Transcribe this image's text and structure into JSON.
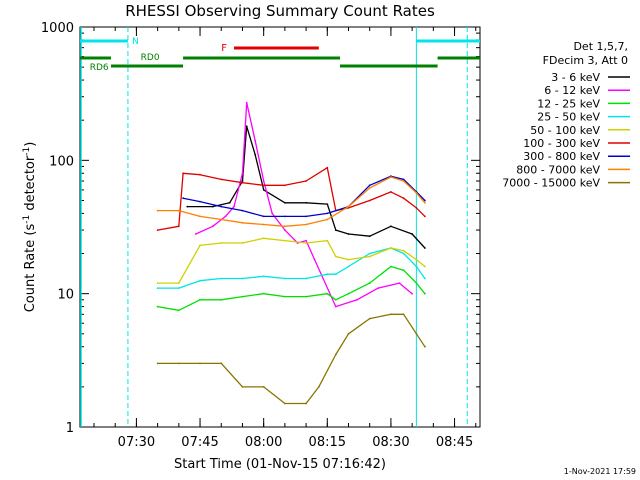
{
  "chart_data": {
    "type": "line",
    "title": "RHESSI Observing Summary Count Rates",
    "xlabel": "Start Time (01-Nov-15 07:16:42)",
    "ylabel_main": "Count Rate (s",
    "ylabel_sup1": "-1",
    "ylabel_mid": " detector",
    "ylabel_sup2": "-1",
    "ylabel_end": ")",
    "y_scale": "log",
    "ylim": [
      1,
      1000
    ],
    "xlim": [
      "07:16:42",
      "08:51:00"
    ],
    "x_ticks": [
      "07:30",
      "07:45",
      "08:00",
      "08:15",
      "08:30",
      "08:45"
    ],
    "y_ticks": [
      "1",
      "10",
      "100",
      "1000"
    ],
    "legend_header": [
      "Det 1,5,7,",
      "FDecim 3, Att 0"
    ],
    "footer_date": "1-Nov-2021 17:59",
    "flags": {
      "N": {
        "label": "N",
        "color": "#00e5e5"
      },
      "F": {
        "label": "F",
        "color": "#e00000"
      },
      "RD0": {
        "label": "RD0",
        "color": "#008000"
      },
      "RD6": {
        "label": "RD6",
        "color": "#008000"
      }
    },
    "series": [
      {
        "name": "3 - 6 keV",
        "color": "#000000",
        "x": [
          "07:35",
          "07:42",
          "07:48",
          "07:52",
          "07:55",
          "07:56",
          "07:58",
          "08:00",
          "08:05",
          "08:10",
          "08:15",
          "08:17",
          "08:20",
          "08:25",
          "08:30",
          "08:35",
          "08:38"
        ],
        "y": [
          null,
          45,
          45,
          48,
          70,
          180,
          110,
          60,
          48,
          48,
          47,
          30,
          28,
          27,
          32,
          28,
          22
        ]
      },
      {
        "name": "6 - 12 keV",
        "color": "#ff00ff",
        "x": [
          "07:44",
          "07:48",
          "07:51",
          "07:53",
          "07:55",
          "07:56",
          "07:58",
          "08:00",
          "08:02",
          "08:05",
          "08:08",
          "08:10",
          "08:12",
          "08:17",
          "08:22",
          "08:27",
          "08:32",
          "08:35"
        ],
        "y": [
          28,
          32,
          38,
          45,
          80,
          270,
          140,
          70,
          40,
          30,
          24,
          25,
          18,
          8,
          9,
          11,
          12,
          10
        ]
      },
      {
        "name": "12 - 25 keV",
        "color": "#00e000",
        "x": [
          "07:35",
          "07:40",
          "07:45",
          "07:50",
          "07:55",
          "08:00",
          "08:05",
          "08:10",
          "08:15",
          "08:17",
          "08:20",
          "08:25",
          "08:30",
          "08:33",
          "08:36",
          "08:38"
        ],
        "y": [
          8,
          7.5,
          9,
          9,
          9.5,
          10,
          9.5,
          9.5,
          10,
          9,
          10,
          12,
          16,
          15,
          12,
          10
        ]
      },
      {
        "name": "25 - 50 keV",
        "color": "#00e5e5",
        "x": [
          "07:35",
          "07:40",
          "07:45",
          "07:50",
          "07:55",
          "08:00",
          "08:05",
          "08:10",
          "08:15",
          "08:17",
          "08:20",
          "08:25",
          "08:30",
          "08:33",
          "08:36",
          "08:38"
        ],
        "y": [
          11,
          11,
          12.5,
          13,
          13,
          13.5,
          13,
          13,
          14,
          14,
          16,
          20,
          22,
          20,
          16,
          13
        ]
      },
      {
        "name": "50 - 100 keV",
        "color": "#d0d000",
        "x": [
          "07:35",
          "07:40",
          "07:45",
          "07:50",
          "07:55",
          "08:00",
          "08:05",
          "08:10",
          "08:15",
          "08:17",
          "08:20",
          "08:25",
          "08:30",
          "08:33",
          "08:36",
          "08:38"
        ],
        "y": [
          12,
          12,
          23,
          24,
          24,
          26,
          25,
          24,
          25,
          19,
          18,
          19,
          22,
          21,
          18,
          16
        ]
      },
      {
        "name": "100 - 300 keV",
        "color": "#e00000",
        "x": [
          "07:35",
          "07:40",
          "07:41",
          "07:45",
          "07:50",
          "07:55",
          "08:00",
          "08:05",
          "08:10",
          "08:15",
          "08:17",
          "08:20",
          "08:25",
          "08:30",
          "08:33",
          "08:36",
          "08:38"
        ],
        "y": [
          30,
          32,
          80,
          78,
          72,
          68,
          65,
          65,
          70,
          88,
          42,
          44,
          50,
          58,
          52,
          44,
          38
        ]
      },
      {
        "name": "300 - 800 keV",
        "color": "#0000cc",
        "x": [
          "07:41",
          "07:45",
          "07:50",
          "07:55",
          "08:00",
          "08:05",
          "08:10",
          "08:15",
          "08:20",
          "08:25",
          "08:30",
          "08:33",
          "08:36",
          "08:38"
        ],
        "y": [
          52,
          49,
          45,
          42,
          38,
          38,
          38,
          40,
          45,
          65,
          76,
          72,
          58,
          50
        ]
      },
      {
        "name": "800 - 7000 keV",
        "color": "#ff8000",
        "x": [
          "07:35",
          "07:40",
          "07:45",
          "07:50",
          "07:55",
          "08:00",
          "08:05",
          "08:10",
          "08:15",
          "08:20",
          "08:25",
          "08:30",
          "08:33",
          "08:36",
          "08:38"
        ],
        "y": [
          42,
          42,
          38,
          36,
          34,
          33,
          32,
          33,
          36,
          45,
          62,
          75,
          70,
          57,
          48
        ]
      },
      {
        "name": "7000 - 15000 keV",
        "color": "#8b7300",
        "x": [
          "07:35",
          "07:40",
          "07:45",
          "07:50",
          "07:55",
          "08:00",
          "08:05",
          "08:10",
          "08:13",
          "08:17",
          "08:20",
          "08:25",
          "08:30",
          "08:33",
          "08:36",
          "08:38"
        ],
        "y": [
          3,
          3,
          3,
          3,
          2,
          2,
          1.5,
          1.5,
          2,
          3.5,
          5,
          6.5,
          7,
          7,
          5,
          4
        ]
      }
    ]
  }
}
